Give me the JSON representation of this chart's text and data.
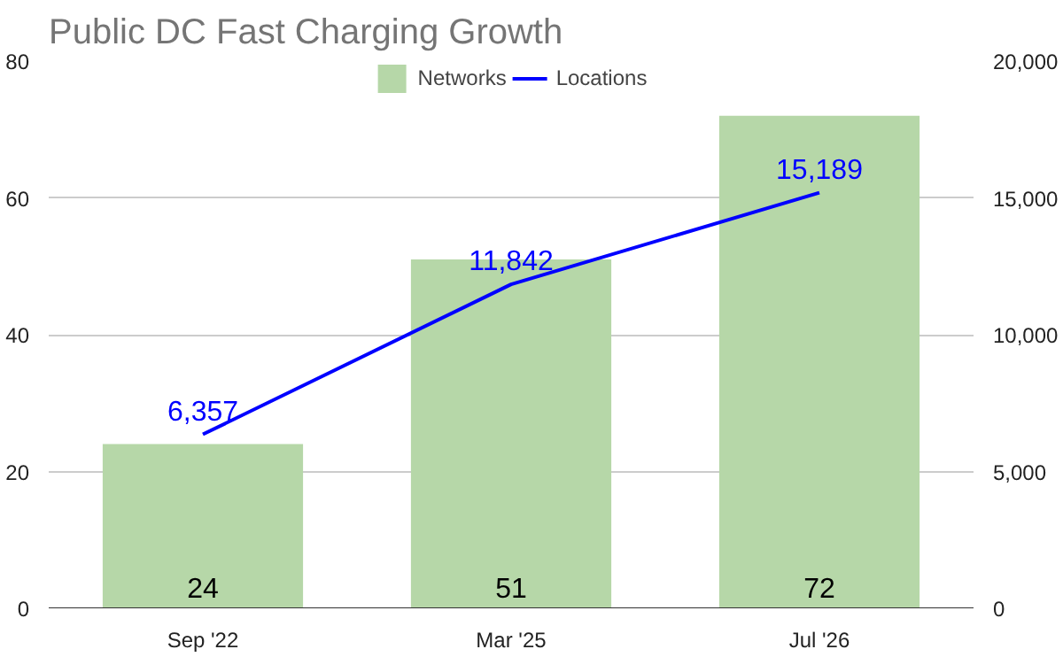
{
  "chart_data": {
    "type": "bar",
    "title": "Public DC Fast Charging Growth",
    "categories": [
      "Sep '22",
      "Mar '25",
      "Jul '26"
    ],
    "series": [
      {
        "name": "Networks",
        "color": "#b6d7a8",
        "values": [
          24,
          51,
          72
        ]
      },
      {
        "name": "Locations",
        "type": "line",
        "axis": "y2",
        "color": "#0000ff",
        "values": [
          6357,
          11842,
          15189
        ],
        "value_labels": [
          "6,357",
          "11,842",
          "15,189"
        ]
      }
    ],
    "ylim": [
      0,
      80
    ],
    "yticks": [
      0,
      20,
      40,
      60,
      80
    ],
    "y2lim": [
      0,
      20000
    ],
    "y2ticks": [
      0,
      {
        "value": 5000,
        "label": "5,000"
      },
      {
        "value": 10000,
        "label": "10,000"
      },
      {
        "value": 15000,
        "label": "15,000"
      },
      {
        "value": 20000,
        "label": "20,000"
      }
    ],
    "grid": "y",
    "legend": "top",
    "data_labels": true
  }
}
